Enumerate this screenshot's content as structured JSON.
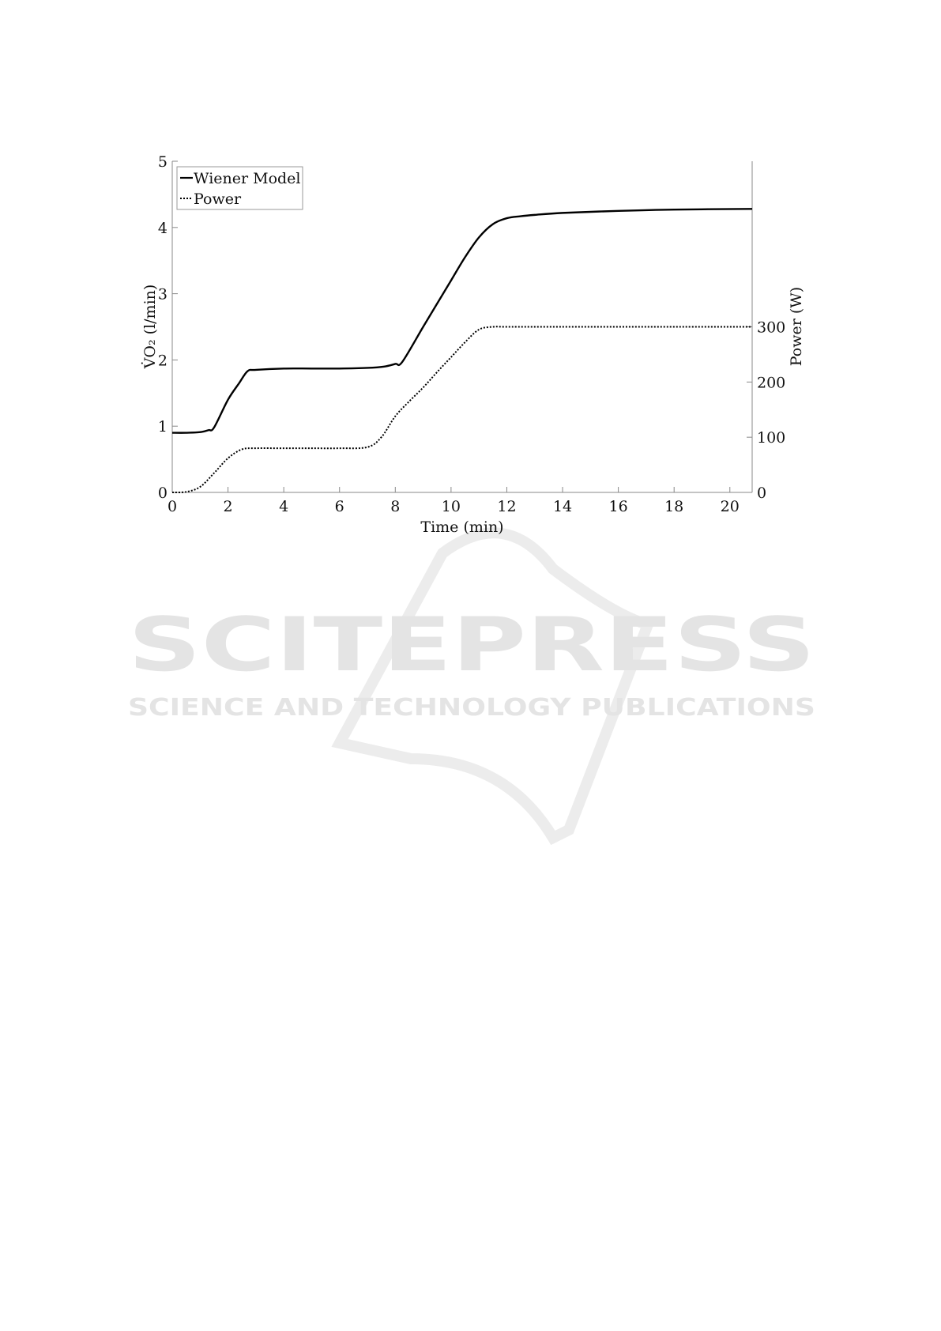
{
  "chart_data": {
    "type": "line",
    "title": "",
    "xlabel": "Time (min)",
    "ylabel": "V̇O₂ (l/min)",
    "ylabel_right": "Power (W)",
    "xlim": [
      0,
      20.8
    ],
    "ylim": [
      0,
      5
    ],
    "ylim_right": [
      0,
      600
    ],
    "xticks": [
      0,
      2,
      4,
      6,
      8,
      10,
      12,
      14,
      16,
      18,
      20
    ],
    "yticks": [
      0,
      1,
      2,
      3,
      4,
      5
    ],
    "yticks_right": [
      0,
      100,
      200,
      300
    ],
    "grid": false,
    "legend_position": "top-left",
    "series": [
      {
        "name": "Wiener Model",
        "axis": "left",
        "style": "solid",
        "color": "#000000",
        "x": [
          0,
          0.5,
          1,
          1.3,
          1.5,
          2,
          2.4,
          2.7,
          3,
          4,
          5,
          6,
          7,
          7.6,
          8,
          8.25,
          9,
          9.5,
          10,
          10.5,
          11,
          11.5,
          12,
          12.5,
          13,
          14,
          16,
          18,
          20.8
        ],
        "y": [
          0.9,
          0.9,
          0.91,
          0.94,
          0.98,
          1.4,
          1.65,
          1.83,
          1.85,
          1.87,
          1.87,
          1.87,
          1.88,
          1.9,
          1.94,
          1.97,
          2.5,
          2.85,
          3.2,
          3.55,
          3.85,
          4.05,
          4.14,
          4.17,
          4.19,
          4.22,
          4.25,
          4.27,
          4.28
        ]
      },
      {
        "name": "Power",
        "axis": "right",
        "style": "dotted",
        "color": "#000000",
        "x": [
          0,
          0.5,
          1,
          1.5,
          2,
          2.5,
          3,
          4,
          5,
          6,
          7,
          7.5,
          8,
          8.5,
          9,
          9.5,
          10,
          10.5,
          11,
          11.5,
          12,
          14,
          16,
          18,
          20.8
        ],
        "y": [
          0,
          1,
          10,
          35,
          62,
          78,
          80,
          80,
          80,
          80,
          82,
          100,
          138,
          165,
          190,
          218,
          245,
          272,
          295,
          300,
          300,
          300,
          300,
          300,
          300
        ]
      }
    ]
  },
  "watermark": {
    "line1": "SCITEPRESS",
    "line2": "SCIENCE AND TECHNOLOGY PUBLICATIONS"
  }
}
